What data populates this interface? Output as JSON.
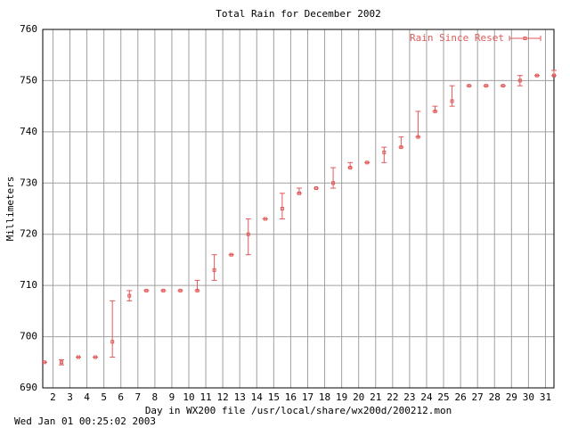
{
  "chart_data": {
    "type": "errorbar",
    "title": "Total Rain for December 2002",
    "x_label": "Day in WX200 file /usr/local/share/wx200d/200212.mon",
    "y_label": "Millimeters",
    "timestamp": "Wed Jan 01 00:25:02 2003",
    "x": [
      1.5,
      2.5,
      3.5,
      4.5,
      5.5,
      6.5,
      7.5,
      8.5,
      9.5,
      10.5,
      11.5,
      12.5,
      13.5,
      14.5,
      15.5,
      16.5,
      17.5,
      18.5,
      19.5,
      20.5,
      21.5,
      22.5,
      23.5,
      24.5,
      25.5,
      26.5,
      27.5,
      28.5,
      29.5,
      30.5,
      31.5
    ],
    "series": [
      {
        "name": "Rain Since Reset",
        "color": "#e05a5a",
        "values": [
          695,
          695,
          696,
          696,
          699,
          708,
          709,
          709,
          709,
          709,
          713,
          716,
          720,
          723,
          725,
          728,
          729,
          730,
          733,
          734,
          736,
          737,
          739,
          744,
          746,
          749,
          749,
          749,
          750,
          751,
          751
        ],
        "low": [
          695,
          694.5,
          696,
          696,
          696,
          707,
          709,
          709,
          709,
          709,
          711,
          716,
          716,
          723,
          723,
          728,
          729,
          729,
          733,
          734,
          734,
          737,
          739,
          744,
          745,
          749,
          749,
          749,
          749,
          751,
          751
        ],
        "high": [
          695,
          695.5,
          696,
          696,
          707,
          709,
          709,
          709,
          709,
          711,
          716,
          716,
          723,
          723,
          728,
          729,
          729,
          733,
          734,
          734,
          737,
          739,
          744,
          745,
          749,
          749,
          749,
          749,
          751,
          751,
          752
        ]
      }
    ],
    "xlim": [
      1.4,
      31.5
    ],
    "xticks": [
      2,
      3,
      4,
      5,
      6,
      7,
      8,
      9,
      10,
      11,
      12,
      13,
      14,
      15,
      16,
      17,
      18,
      19,
      20,
      21,
      22,
      23,
      24,
      25,
      26,
      27,
      28,
      29,
      30,
      31
    ],
    "ylim": [
      690,
      760
    ],
    "yticks": [
      690,
      700,
      710,
      720,
      730,
      740,
      750,
      760
    ],
    "grid": true,
    "legend": "top-right"
  }
}
